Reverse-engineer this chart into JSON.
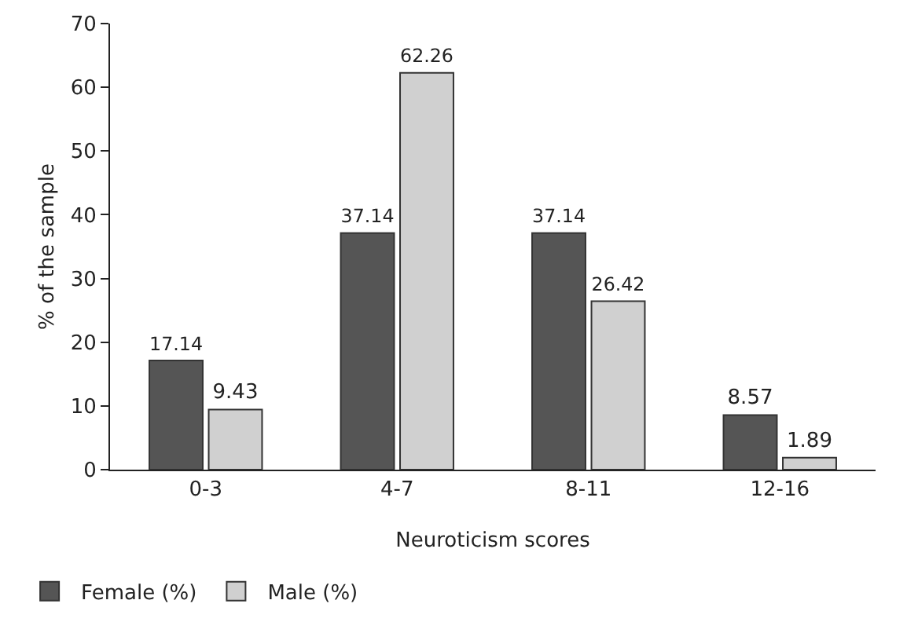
{
  "chart_data": {
    "type": "bar",
    "xlabel": "Neuroticism scores",
    "ylabel": "% of the sample",
    "categories": [
      "0-3",
      "4-7",
      "8-11",
      "12-16"
    ],
    "series": [
      {
        "name": "Female (%)",
        "color": "#555555",
        "values": [
          17.14,
          37.14,
          37.14,
          8.57
        ]
      },
      {
        "name": "Male (%)",
        "color": "#d0d0d0",
        "values": [
          9.43,
          62.26,
          26.42,
          1.89
        ]
      }
    ],
    "ylim": [
      0,
      70
    ],
    "yticks": [
      0,
      10,
      20,
      30,
      40,
      50,
      60,
      70
    ],
    "grid": false,
    "legend": "bottom left",
    "data_labels": true
  }
}
